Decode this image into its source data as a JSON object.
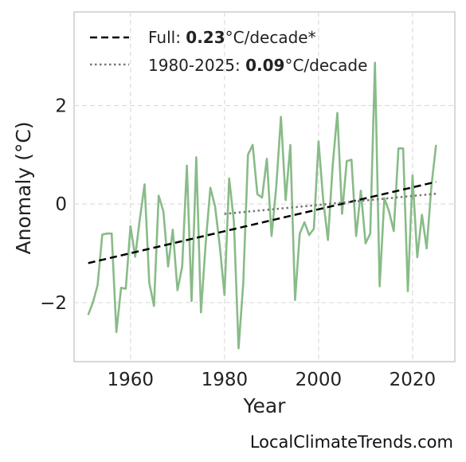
{
  "chart_data": {
    "type": "line",
    "xlabel": "Year",
    "ylabel": "Anomaly (°C)",
    "xlim": [
      1948,
      2029
    ],
    "ylim": [
      -3.2,
      3.9
    ],
    "xticks": [
      1960,
      1980,
      2000,
      2020
    ],
    "yticks": [
      -2,
      0,
      2
    ],
    "ytick_labels": [
      "−2",
      "0",
      "2"
    ],
    "grid": true,
    "legend_position": "top-left",
    "series": [
      {
        "color": "#88bb88",
        "style": "solid",
        "x": [
          1951,
          1952,
          1953,
          1954,
          1955,
          1956,
          1957,
          1958,
          1959,
          1960,
          1961,
          1962,
          1963,
          1964,
          1965,
          1966,
          1967,
          1968,
          1969,
          1970,
          1971,
          1972,
          1973,
          1974,
          1975,
          1976,
          1977,
          1978,
          1979,
          1980,
          1981,
          1982,
          1983,
          1984,
          1985,
          1986,
          1987,
          1988,
          1989,
          1990,
          1991,
          1992,
          1993,
          1994,
          1995,
          1996,
          1997,
          1998,
          1999,
          2000,
          2001,
          2002,
          2003,
          2004,
          2005,
          2006,
          2007,
          2008,
          2009,
          2010,
          2011,
          2012,
          2013,
          2014,
          2015,
          2016,
          2017,
          2018,
          2019,
          2020,
          2021,
          2022,
          2023,
          2024,
          2025
        ],
        "values": [
          -2.25,
          -2.0,
          -1.65,
          -0.62,
          -0.6,
          -0.6,
          -2.6,
          -1.7,
          -1.72,
          -0.45,
          -1.07,
          -0.3,
          0.4,
          -1.6,
          -2.07,
          0.17,
          -0.15,
          -1.27,
          -0.52,
          -1.75,
          -1.27,
          0.78,
          -1.97,
          0.95,
          -2.2,
          -0.8,
          0.33,
          -0.05,
          -0.85,
          -1.85,
          0.52,
          -0.35,
          -2.93,
          -1.6,
          1.0,
          1.2,
          0.2,
          0.13,
          0.92,
          -0.65,
          0.35,
          1.77,
          0.08,
          1.2,
          -1.95,
          -0.6,
          -0.37,
          -0.63,
          -0.5,
          1.27,
          0.07,
          -0.73,
          0.77,
          1.85,
          -0.2,
          0.87,
          0.9,
          -0.65,
          0.27,
          -0.8,
          -0.6,
          2.87,
          -1.67,
          0.12,
          -0.15,
          -0.55,
          1.13,
          1.13,
          -1.77,
          0.58,
          -1.08,
          -0.22,
          -0.9,
          0.35,
          1.2
        ]
      },
      {
        "name": "Full",
        "color": "#000000",
        "style": "dashed",
        "x": [
          1951,
          2025
        ],
        "values": [
          -1.2,
          0.45
        ]
      },
      {
        "name": "1980-2025",
        "color": "#777777",
        "style": "dotted",
        "x": [
          1980,
          2025
        ],
        "values": [
          -0.2,
          0.21
        ]
      }
    ],
    "legend": [
      {
        "prefix": "Full: ",
        "value": "0.23",
        "suffix": "°C/decade*"
      },
      {
        "prefix": "1980-2025: ",
        "value": "0.09",
        "suffix": "°C/decade"
      }
    ]
  },
  "source_label": "LocalClimateTrends.com"
}
